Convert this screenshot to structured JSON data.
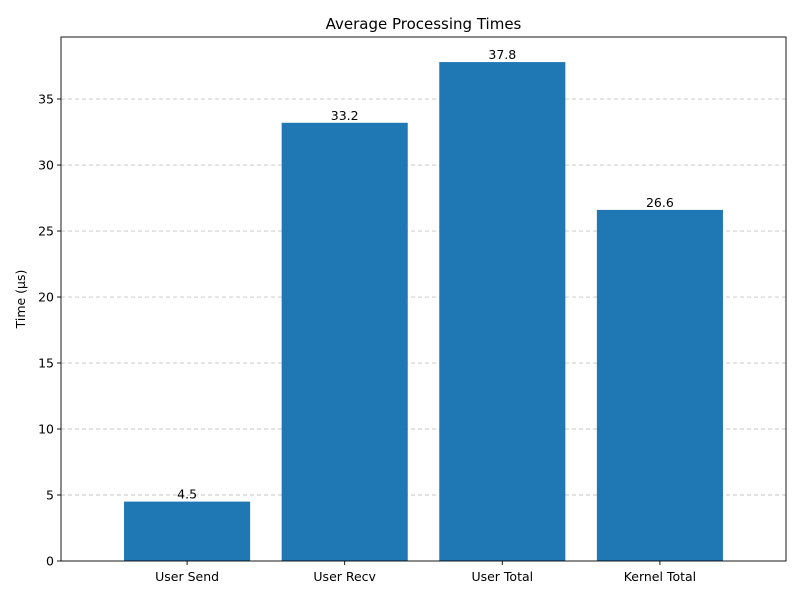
{
  "chart_data": {
    "type": "bar",
    "title": "Average Processing Times",
    "xlabel": "",
    "ylabel": "Time (µs)",
    "categories": [
      "User Send",
      "User Recv",
      "User Total",
      "Kernel Total"
    ],
    "values": [
      4.5,
      33.2,
      37.8,
      26.6
    ],
    "data_labels": [
      "4.5",
      "33.2",
      "37.8",
      "26.6"
    ],
    "ylim": [
      0,
      39.7
    ],
    "yticks": [
      0,
      5,
      10,
      15,
      20,
      25,
      30,
      35
    ],
    "grid": "y, dashed",
    "bar_color": "#1f77b4",
    "legend": "none"
  }
}
